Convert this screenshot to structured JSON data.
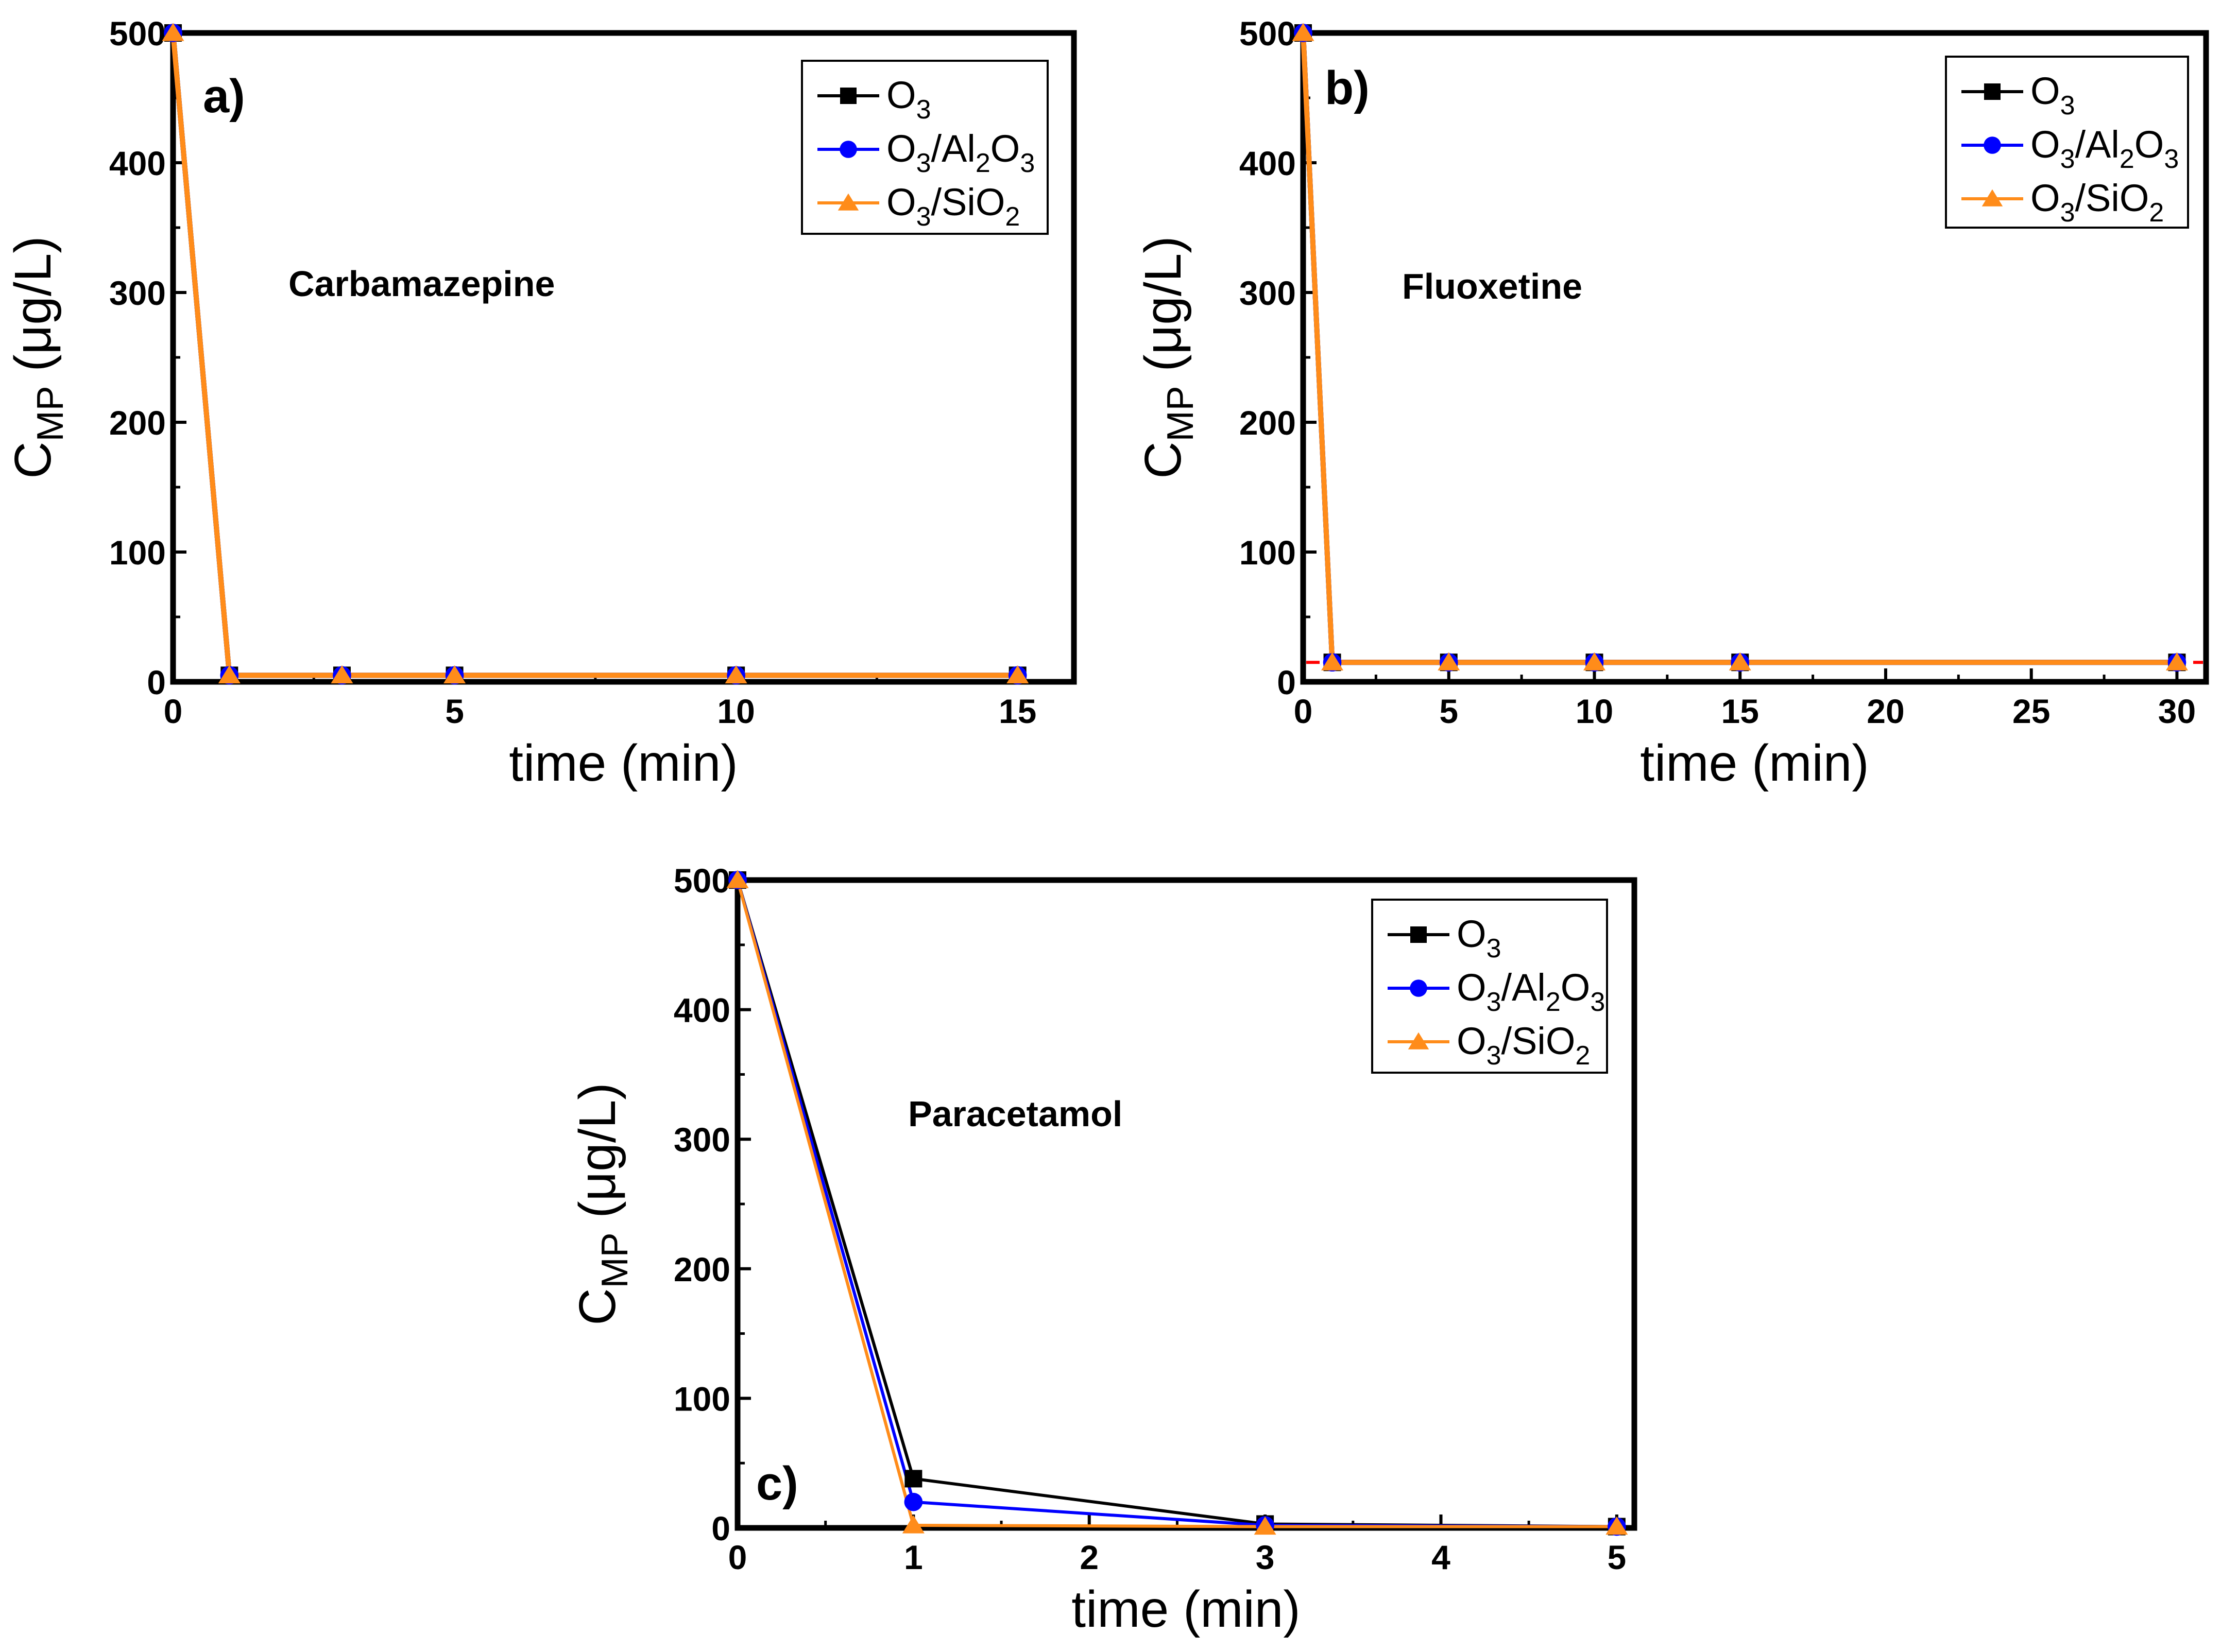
{
  "chart_data": [
    {
      "type": "line",
      "panel_label": "a)",
      "annotation": "Carbamazepine",
      "xlabel": "time (min)",
      "ylabel": "C_MP (μg/L)",
      "ylabel_parts": {
        "base": "C",
        "sub": "MP",
        "rest": " (μg/L)"
      },
      "xlim": [
        0,
        16
      ],
      "ylim": [
        0,
        500
      ],
      "xticks": [
        0,
        5,
        10,
        15
      ],
      "yticks": [
        0,
        100,
        200,
        300,
        400,
        500
      ],
      "legend_position": "top-right",
      "series": [
        {
          "name": "O3",
          "name_parts": [
            [
              "O",
              ""
            ],
            [
              "3",
              "sub"
            ]
          ],
          "color": "#000000",
          "marker": "square",
          "x": [
            0,
            1,
            3,
            5,
            10,
            15
          ],
          "y": [
            500,
            5,
            5,
            5,
            5,
            5
          ]
        },
        {
          "name": "O3/Al2O3",
          "name_parts": [
            [
              "O",
              ""
            ],
            [
              "3",
              "sub"
            ],
            [
              "/Al",
              ""
            ],
            [
              "2",
              "sub"
            ],
            [
              "O",
              ""
            ],
            [
              "3",
              "sub"
            ]
          ],
          "color": "#0000ff",
          "marker": "circle",
          "x": [
            0,
            1,
            3,
            5,
            10,
            15
          ],
          "y": [
            500,
            5,
            5,
            5,
            5,
            5
          ]
        },
        {
          "name": "O3/SiO2",
          "name_parts": [
            [
              "O",
              ""
            ],
            [
              "3",
              "sub"
            ],
            [
              "/SiO",
              ""
            ],
            [
              "2",
              "sub"
            ]
          ],
          "color": "#ff8c1a",
          "marker": "triangle",
          "x": [
            0,
            1,
            3,
            5,
            10,
            15
          ],
          "y": [
            500,
            5,
            5,
            5,
            5,
            5
          ]
        }
      ]
    },
    {
      "type": "line",
      "panel_label": "b)",
      "annotation": "Fluoxetine",
      "xlabel": "time (min)",
      "ylabel": "C_MP (μg/L)",
      "ylabel_parts": {
        "base": "C",
        "sub": "MP",
        "rest": " (μg/L)"
      },
      "xlim": [
        0,
        31
      ],
      "ylim": [
        0,
        500
      ],
      "xticks": [
        0,
        5,
        10,
        15,
        20,
        25,
        30
      ],
      "yticks": [
        0,
        100,
        200,
        300,
        400,
        500
      ],
      "reference_line": {
        "y": 15,
        "color": "#ff0000",
        "style": "dashed"
      },
      "legend_position": "top-right",
      "series": [
        {
          "name": "O3",
          "name_parts": [
            [
              "O",
              ""
            ],
            [
              "3",
              "sub"
            ]
          ],
          "color": "#000000",
          "marker": "square",
          "x": [
            0,
            1,
            5,
            10,
            15,
            30
          ],
          "y": [
            500,
            15,
            15,
            15,
            15,
            15
          ]
        },
        {
          "name": "O3/Al2O3",
          "name_parts": [
            [
              "O",
              ""
            ],
            [
              "3",
              "sub"
            ],
            [
              "/Al",
              ""
            ],
            [
              "2",
              "sub"
            ],
            [
              "O",
              ""
            ],
            [
              "3",
              "sub"
            ]
          ],
          "color": "#0000ff",
          "marker": "circle",
          "x": [
            0,
            1,
            5,
            10,
            15,
            30
          ],
          "y": [
            500,
            15,
            15,
            15,
            15,
            15
          ]
        },
        {
          "name": "O3/SiO2",
          "name_parts": [
            [
              "O",
              ""
            ],
            [
              "3",
              "sub"
            ],
            [
              "/SiO",
              ""
            ],
            [
              "2",
              "sub"
            ]
          ],
          "color": "#ff8c1a",
          "marker": "triangle",
          "x": [
            0,
            1,
            5,
            10,
            15,
            30
          ],
          "y": [
            500,
            15,
            15,
            15,
            15,
            15
          ]
        }
      ]
    },
    {
      "type": "line",
      "panel_label": "c)",
      "annotation": "Paracetamol",
      "xlabel": "time (min)",
      "ylabel": "C_MP (μg/L)",
      "ylabel_parts": {
        "base": "C",
        "sub": "MP",
        "rest": " (μg/L)"
      },
      "xlim": [
        0,
        5.1
      ],
      "ylim": [
        0,
        500
      ],
      "xticks": [
        0,
        1,
        2,
        3,
        4,
        5
      ],
      "yticks": [
        0,
        100,
        200,
        300,
        400,
        500
      ],
      "legend_position": "top-right",
      "series": [
        {
          "name": "O3",
          "name_parts": [
            [
              "O",
              ""
            ],
            [
              "3",
              "sub"
            ]
          ],
          "color": "#000000",
          "marker": "square",
          "x": [
            0,
            1,
            3,
            5
          ],
          "y": [
            500,
            38,
            3,
            1
          ]
        },
        {
          "name": "O3/Al2O3",
          "name_parts": [
            [
              "O",
              ""
            ],
            [
              "3",
              "sub"
            ],
            [
              "/Al",
              ""
            ],
            [
              "2",
              "sub"
            ],
            [
              "O",
              ""
            ],
            [
              "3",
              "sub"
            ]
          ],
          "color": "#0000ff",
          "marker": "circle",
          "x": [
            0,
            1,
            3,
            5
          ],
          "y": [
            500,
            20,
            2,
            1
          ]
        },
        {
          "name": "O3/SiO2",
          "name_parts": [
            [
              "O",
              ""
            ],
            [
              "3",
              "sub"
            ],
            [
              "/SiO",
              ""
            ],
            [
              "2",
              "sub"
            ]
          ],
          "color": "#ff8c1a",
          "marker": "triangle",
          "x": [
            0,
            1,
            3,
            5
          ],
          "y": [
            500,
            2,
            1,
            1
          ]
        }
      ]
    }
  ]
}
